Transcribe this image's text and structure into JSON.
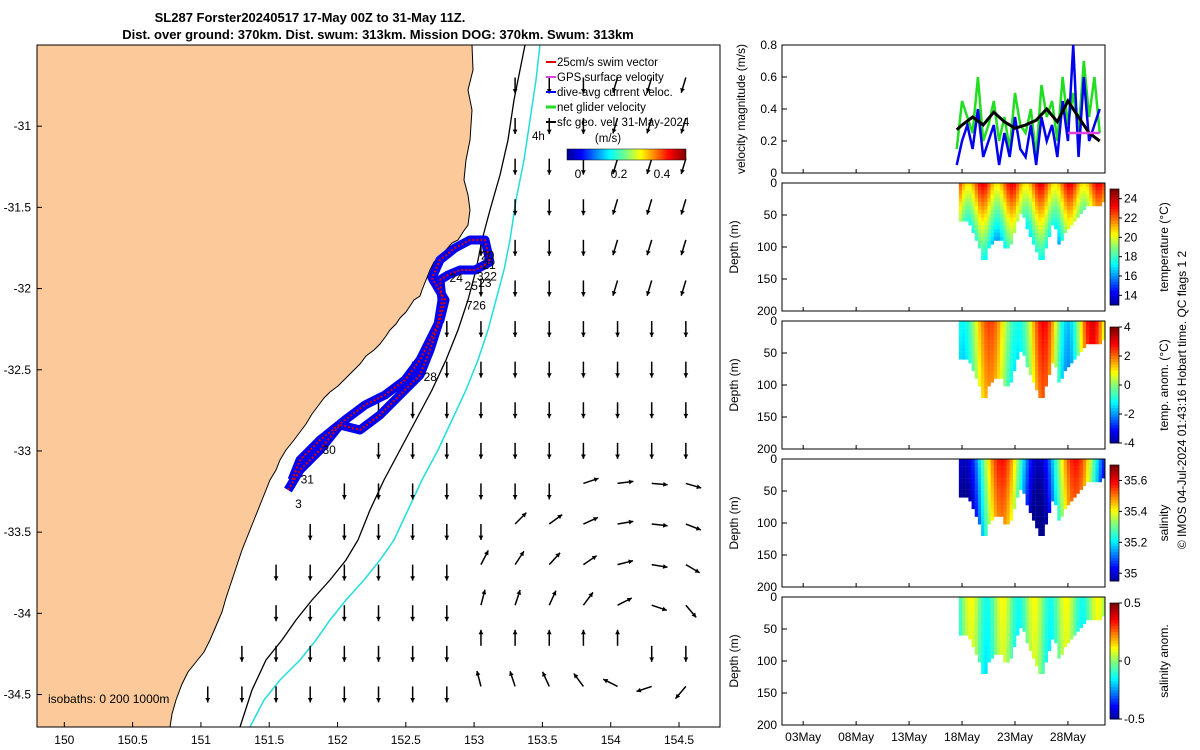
{
  "title_line1": "SL287 Forster20240517 17-May 00Z to 31-May 11Z.",
  "title_line2": "Dist. over ground: 370km. Dist. swum: 313km. Mission DOG: 370km. Swum: 313km",
  "credit": "© IMOS 04-Jul-2024 01:43:16 Hobart time. QC flags 1  2",
  "colors": {
    "land": "#fbc99a",
    "track_blue": "#0000ee",
    "track_red": "#e00000",
    "glider_green": "#22dd22",
    "contour_cyan": "#22dddd"
  },
  "chart_data": [
    {
      "type": "map",
      "xlim": [
        149.8,
        154.8
      ],
      "ylim": [
        -34.7,
        -30.5
      ],
      "xticks": [
        "150",
        "150.5",
        "151",
        "151.5",
        "152",
        "152.5",
        "153",
        "153.5",
        "154",
        "154.5"
      ],
      "yticks": [
        "-31",
        "-31.5",
        "-32",
        "-32.5",
        "-33",
        "-33.5",
        "-34",
        "-34.5"
      ],
      "legend": [
        {
          "label": "25cm/s swim vector",
          "icon": "red-dash"
        },
        {
          "label": "GPS surface velocity",
          "icon": "magenta-dash"
        },
        {
          "label": "dive-avg current veloc.",
          "icon": "blue-dash"
        },
        {
          "label": "net glider velocity",
          "icon": "green-dash"
        },
        {
          "label": "sfc geo. vel. 31-May-2024",
          "icon": "black-dash"
        }
      ],
      "legend_extra": "4h",
      "colorbar": {
        "label": "(m/s)",
        "ticks": [
          "0",
          "0.2",
          "0.4"
        ],
        "range": [
          0,
          0.5
        ]
      },
      "isobaths_label": "isobaths: 0   200  1000m",
      "day_labels": [
        {
          "text": "20",
          "lon": 153.05,
          "lat": -31.82
        },
        {
          "text": "21",
          "lon": 153.06,
          "lat": -31.88
        },
        {
          "text": "322",
          "lon": 153.02,
          "lat": -31.95
        },
        {
          "text": "24",
          "lon": 152.82,
          "lat": -31.96
        },
        {
          "text": "25",
          "lon": 152.93,
          "lat": -32.01
        },
        {
          "text": "23",
          "lon": 153.03,
          "lat": -31.99
        },
        {
          "text": "726",
          "lon": 152.94,
          "lat": -32.13
        },
        {
          "text": "28",
          "lon": 152.63,
          "lat": -32.57
        },
        {
          "text": "30",
          "lon": 151.89,
          "lat": -33.02
        },
        {
          "text": "31",
          "lon": 151.73,
          "lat": -33.2
        },
        {
          "text": "3",
          "lon": 151.69,
          "lat": -33.35
        }
      ]
    },
    {
      "type": "line",
      "ylabel": "velocity magnitude (m/s)",
      "ylim": [
        0,
        0.8
      ],
      "yticks": [
        "0",
        "0.2",
        "0.4",
        "0.6",
        "0.8"
      ],
      "series": [
        {
          "name": "",
          "color": "#22dd22",
          "x": [
            17.5,
            18,
            18.5,
            19,
            19.5,
            20,
            20.5,
            21,
            21.5,
            22,
            22.5,
            23,
            23.5,
            24,
            24.5,
            25,
            25.5,
            26,
            26.5,
            27,
            27.5,
            28,
            28.5,
            29,
            29.5,
            30,
            30.5,
            31
          ],
          "values": [
            0.15,
            0.45,
            0.35,
            0.25,
            0.6,
            0.2,
            0.3,
            0.45,
            0.2,
            0.35,
            0.15,
            0.5,
            0.3,
            0.25,
            0.4,
            0.1,
            0.55,
            0.35,
            0.45,
            0.2,
            0.6,
            0.3,
            0.5,
            0.25,
            0.7,
            0.35,
            0.6,
            0.25
          ]
        },
        {
          "name": "",
          "color": "#0000ee",
          "x": [
            17.5,
            18,
            18.5,
            19,
            19.5,
            20,
            20.5,
            21,
            21.5,
            22,
            22.5,
            23,
            23.5,
            24,
            24.5,
            25,
            25.5,
            26,
            26.5,
            27,
            27.5,
            28,
            28.5,
            29,
            29.5,
            30,
            30.5,
            31
          ],
          "values": [
            0.05,
            0.2,
            0.3,
            0.15,
            0.4,
            0.1,
            0.2,
            0.3,
            0.05,
            0.25,
            0.1,
            0.35,
            0.15,
            0.1,
            0.3,
            0.05,
            0.35,
            0.2,
            0.3,
            0.1,
            0.45,
            0.2,
            0.8,
            0.1,
            0.6,
            0.2,
            0.3,
            0.4
          ]
        },
        {
          "name": "",
          "color": "#000000",
          "x": [
            17.5,
            18,
            19,
            20,
            21,
            22,
            23,
            24,
            25,
            26,
            27,
            28,
            29,
            30,
            31
          ],
          "values": [
            0.27,
            0.3,
            0.35,
            0.3,
            0.38,
            0.32,
            0.28,
            0.3,
            0.33,
            0.4,
            0.32,
            0.45,
            0.35,
            0.25,
            0.2
          ]
        },
        {
          "name": "",
          "color": "#e040e0",
          "x": [
            28,
            31
          ],
          "values": [
            0.25,
            0.25
          ]
        }
      ]
    },
    {
      "type": "heatmap",
      "ylabel": "Depth (m)",
      "yticks": [
        "0",
        "50",
        "100",
        "150",
        "200"
      ],
      "colorbar_label": "temperature (°C)",
      "colorbar_ticks": [
        "14",
        "16",
        "18",
        "20",
        "22",
        "24"
      ],
      "crange": [
        13,
        25
      ]
    },
    {
      "type": "heatmap",
      "ylabel": "Depth (m)",
      "yticks": [
        "0",
        "50",
        "100",
        "150",
        "200"
      ],
      "colorbar_label": "temp. anom. (°C)",
      "colorbar_ticks": [
        "-4",
        "-2",
        "0",
        "2",
        "4"
      ],
      "crange": [
        -4,
        4
      ]
    },
    {
      "type": "heatmap",
      "ylabel": "Depth (m)",
      "yticks": [
        "0",
        "50",
        "100",
        "150",
        "200"
      ],
      "colorbar_label": "salinity",
      "colorbar_ticks": [
        "35",
        "35.2",
        "35.4",
        "35.6"
      ],
      "crange": [
        34.95,
        35.7
      ]
    },
    {
      "type": "heatmap",
      "ylabel": "Depth (m)",
      "yticks": [
        "0",
        "50",
        "100",
        "150",
        "200"
      ],
      "colorbar_label": "salinity anom.",
      "colorbar_ticks": [
        "-0.5",
        "0",
        "0.5"
      ],
      "crange": [
        -0.5,
        0.5
      ]
    }
  ],
  "time_axis": {
    "ticks": [
      "03May",
      "08May",
      "13May",
      "18May",
      "23May",
      "28May"
    ]
  }
}
